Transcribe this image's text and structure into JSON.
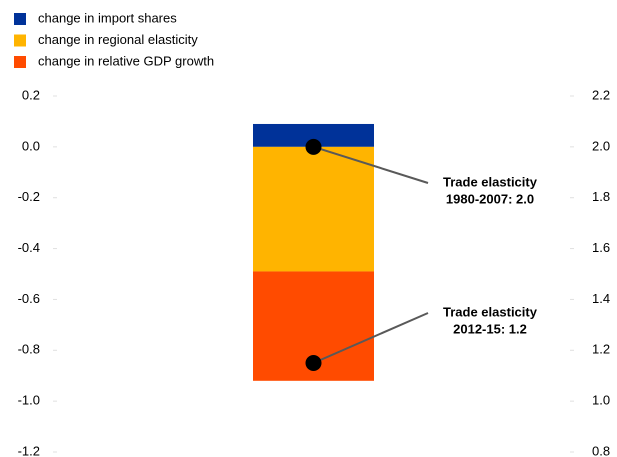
{
  "chart_data": {
    "type": "bar",
    "stacked": true,
    "categories": [
      null
    ],
    "series": [
      {
        "name": "change in import shares",
        "color": "#003299",
        "values": [
          0.09
        ]
      },
      {
        "name": "change in regional elasticity",
        "color": "#ffb400",
        "values": [
          -0.49
        ]
      },
      {
        "name": "change in relative GDP growth",
        "color": "#ff4b00",
        "values": [
          -0.43
        ]
      }
    ],
    "points": {
      "axis": "y2",
      "color": "#000000",
      "values": [
        2.0,
        1.15
      ]
    },
    "annotations": [
      {
        "text": [
          "Trade elasticity",
          "1980-2007: 2.0"
        ]
      },
      {
        "text": [
          "Trade elasticity",
          "2012-15: 1.2"
        ]
      }
    ],
    "ylim": [
      -1.2,
      0.2
    ],
    "yticks": [
      {
        "value": 0.2,
        "label": "0.2"
      },
      {
        "value": 0,
        "label": "0.0"
      },
      {
        "value": -0.2,
        "label": "-0.2"
      },
      {
        "value": -0.4,
        "label": "-0.4"
      },
      {
        "value": -0.6,
        "label": "-0.6"
      },
      {
        "value": -0.8,
        "label": "-0.8"
      },
      {
        "value": -1,
        "label": "-1.0"
      },
      {
        "value": -1.2,
        "label": "-1.2"
      }
    ],
    "y2lim": [
      0.8,
      2.2
    ],
    "y2ticks": [
      {
        "value": 2.2,
        "label": "2.2"
      },
      {
        "value": 2,
        "label": "2.0"
      },
      {
        "value": 1.8,
        "label": "1.8"
      },
      {
        "value": 1.6,
        "label": "1.6"
      },
      {
        "value": 1.4,
        "label": "1.4"
      },
      {
        "value": 1.2,
        "label": "1.2"
      },
      {
        "value": 1,
        "label": "1.0"
      },
      {
        "value": 0.8,
        "label": "0.8"
      }
    ],
    "grid": false
  }
}
